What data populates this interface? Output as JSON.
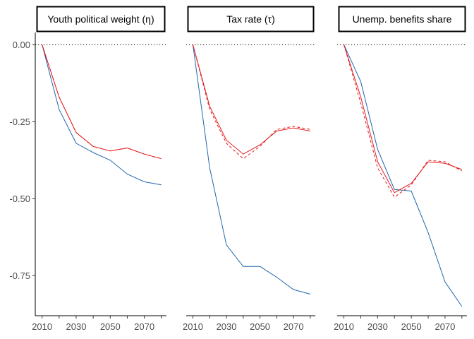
{
  "chart_data": {
    "type": "line",
    "shared_y_axis": true,
    "ylim": [
      -0.88,
      0.04
    ],
    "y_ticks": [
      0.0,
      -0.25,
      -0.5,
      -0.75
    ],
    "y_tick_labels": [
      "0.00",
      "-0.25",
      "-0.50",
      "-0.75"
    ],
    "x_ticks": [
      2010,
      2030,
      2050,
      2070
    ],
    "x_tick_labels": [
      "2010",
      "2030",
      "2050",
      "2070"
    ],
    "xlim": [
      2006,
      2083
    ],
    "reference_line": {
      "y": 0,
      "style": "dotted"
    },
    "colors": {
      "blue": "#2166ac",
      "red": "#e31a1c"
    },
    "panels": [
      {
        "strip_label": "Youth political weight (η)",
        "x": [
          2010,
          2020,
          2030,
          2040,
          2050,
          2060,
          2070,
          2080
        ],
        "series": [
          {
            "color": "blue",
            "style": "solid",
            "values": [
              0.0,
              -0.21,
              -0.32,
              -0.35,
              -0.375,
              -0.42,
              -0.445,
              -0.455
            ]
          },
          {
            "color": "red",
            "style": "solid",
            "values": [
              0.0,
              -0.17,
              -0.285,
              -0.33,
              -0.345,
              -0.335,
              -0.355,
              -0.37
            ]
          },
          {
            "color": "red",
            "style": "dashed",
            "values": [
              0.0,
              -0.17,
              -0.285,
              -0.33,
              -0.345,
              -0.335,
              -0.355,
              -0.37
            ]
          }
        ]
      },
      {
        "strip_label": "Tax rate (τ)",
        "x": [
          2010,
          2020,
          2030,
          2040,
          2050,
          2060,
          2070,
          2080
        ],
        "series": [
          {
            "color": "blue",
            "style": "solid",
            "values": [
              0.0,
              -0.4,
              -0.65,
              -0.72,
              -0.72,
              -0.755,
              -0.795,
              -0.81
            ]
          },
          {
            "color": "red",
            "style": "solid",
            "values": [
              0.0,
              -0.2,
              -0.31,
              -0.355,
              -0.325,
              -0.28,
              -0.27,
              -0.28
            ]
          },
          {
            "color": "red",
            "style": "dashed",
            "values": [
              0.0,
              -0.21,
              -0.32,
              -0.37,
              -0.33,
              -0.275,
              -0.265,
              -0.275
            ]
          }
        ]
      },
      {
        "strip_label": "Unemp. benefits share",
        "x": [
          2010,
          2020,
          2030,
          2040,
          2050,
          2060,
          2070,
          2080
        ],
        "series": [
          {
            "color": "blue",
            "style": "solid",
            "values": [
              0.0,
              -0.12,
              -0.34,
              -0.47,
              -0.475,
              -0.61,
              -0.77,
              -0.85
            ]
          },
          {
            "color": "red",
            "style": "solid",
            "values": [
              0.0,
              -0.17,
              -0.38,
              -0.48,
              -0.45,
              -0.38,
              -0.385,
              -0.405
            ]
          },
          {
            "color": "red",
            "style": "dashed",
            "values": [
              0.0,
              -0.19,
              -0.4,
              -0.495,
              -0.455,
              -0.375,
              -0.38,
              -0.41
            ]
          }
        ]
      }
    ]
  }
}
